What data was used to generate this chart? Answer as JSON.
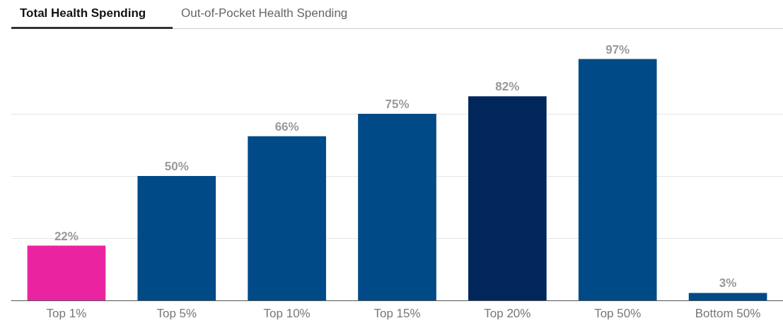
{
  "chart_data": {
    "type": "bar",
    "title": "Total Health Spending",
    "subtitle": "Out-of-Pocket Health Spending",
    "categories": [
      "Top 1%",
      "Top 5%",
      "Top 10%",
      "Top 15%",
      "Top 20%",
      "Top 50%",
      "Bottom 50%"
    ],
    "values": [
      22,
      50,
      66,
      75,
      82,
      97,
      3
    ],
    "value_labels": [
      "22%",
      "50%",
      "66%",
      "75%",
      "82%",
      "97%",
      "3%"
    ],
    "colors": [
      "#ea24a0",
      "#004a87",
      "#004a87",
      "#004a87",
      "#00265c",
      "#004a87",
      "#004a87"
    ],
    "yticks": [
      {
        "value": 0,
        "label": null
      },
      {
        "value": 25,
        "label": null
      },
      {
        "value": 50,
        "label": null
      },
      {
        "value": 75,
        "label": null
      }
    ],
    "tick_labels": "x",
    "grid": "y"
  }
}
